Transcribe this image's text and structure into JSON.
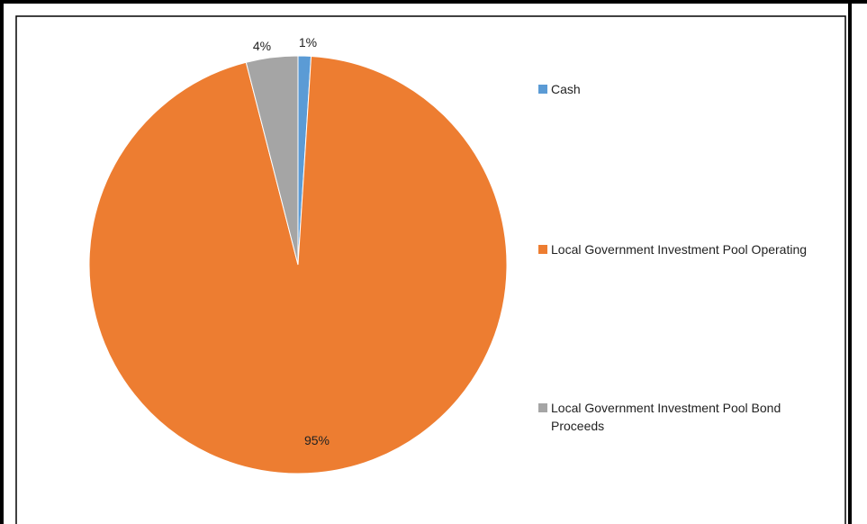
{
  "chart_data": {
    "type": "pie",
    "slices": [
      {
        "label": "Cash",
        "value": 1,
        "display": "1%",
        "color": "#5B9BD5"
      },
      {
        "label": "Local Government Investment Pool Operating",
        "value": 95,
        "display": "95%",
        "color": "#ED7D31"
      },
      {
        "label": "Local Government Investment Pool Bond Proceeds",
        "value": 4,
        "display": "4%",
        "color": "#A5A5A5"
      }
    ],
    "legend_position": "right"
  }
}
